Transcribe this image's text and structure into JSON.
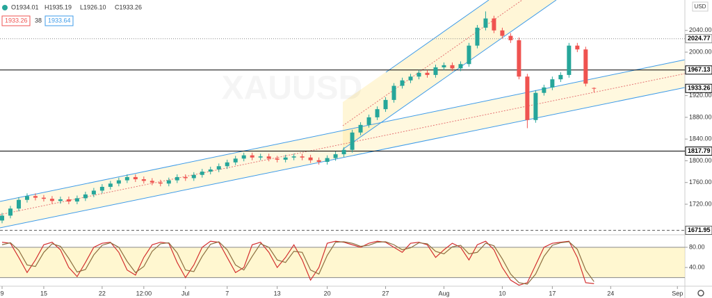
{
  "chart_data": {
    "type": "candlestick",
    "watermark": "XAUUSD",
    "currency": "USD",
    "legend_ohlc": [
      "O1934.01",
      "H1935.19",
      "L1926.10",
      "C1933.26"
    ],
    "legend_boxes": [
      "1933.26",
      "38",
      "1933.64"
    ],
    "up_color": "#26a69a",
    "down_color": "#ef5350",
    "open": [
      1690,
      1699,
      1712,
      1728,
      1735,
      1732,
      1730,
      1726,
      1729,
      1725,
      1731,
      1738,
      1745,
      1752,
      1758,
      1764,
      1770,
      1766,
      1763,
      1760,
      1758,
      1764,
      1770,
      1768,
      1774,
      1780,
      1784,
      1790,
      1797,
      1804,
      1810,
      1806,
      1808,
      1804,
      1802,
      1806,
      1808,
      1806,
      1801,
      1798,
      1805,
      1812,
      1820,
      1852,
      1866,
      1880,
      1895,
      1912,
      1938,
      1948,
      1955,
      1962,
      1958,
      1972,
      1976,
      1970,
      1978,
      2012,
      2045,
      2062,
      2040,
      2030,
      2022,
      1955,
      1875,
      1925,
      1935,
      1950,
      1958,
      2012,
      2005,
      1934.01
    ],
    "high": [
      1704,
      1717,
      1733,
      1740,
      1740,
      1737,
      1735,
      1734,
      1734,
      1736,
      1743,
      1750,
      1757,
      1763,
      1769,
      1775,
      1775,
      1771,
      1768,
      1765,
      1769,
      1775,
      1775,
      1779,
      1785,
      1789,
      1795,
      1802,
      1809,
      1815,
      1815,
      1813,
      1813,
      1809,
      1811,
      1813,
      1813,
      1811,
      1806,
      1810,
      1817,
      1825,
      1857,
      1871,
      1885,
      1900,
      1917,
      1943,
      1953,
      1960,
      1967,
      1967,
      1977,
      1981,
      1981,
      1983,
      2017,
      2050,
      2075,
      2067,
      2045,
      2035,
      2027,
      1960,
      1930,
      1940,
      1955,
      1963,
      2017,
      2017,
      2010,
      1935.19
    ],
    "low": [
      1685,
      1694,
      1707,
      1723,
      1727,
      1725,
      1721,
      1721,
      1720,
      1720,
      1726,
      1733,
      1740,
      1747,
      1753,
      1759,
      1761,
      1758,
      1755,
      1753,
      1753,
      1759,
      1763,
      1763,
      1769,
      1775,
      1779,
      1785,
      1792,
      1799,
      1801,
      1801,
      1799,
      1797,
      1797,
      1801,
      1801,
      1796,
      1793,
      1793,
      1800,
      1807,
      1815,
      1847,
      1861,
      1875,
      1890,
      1907,
      1933,
      1943,
      1950,
      1953,
      1953,
      1967,
      1965,
      1965,
      1973,
      2007,
      2040,
      2035,
      2025,
      2017,
      1950,
      1860,
      1870,
      1920,
      1930,
      1945,
      1953,
      2000,
      1937,
      1926.1
    ],
    "close": [
      1699,
      1712,
      1728,
      1735,
      1732,
      1730,
      1726,
      1729,
      1725,
      1731,
      1738,
      1745,
      1752,
      1758,
      1764,
      1770,
      1766,
      1763,
      1760,
      1758,
      1764,
      1770,
      1768,
      1774,
      1780,
      1784,
      1790,
      1797,
      1804,
      1810,
      1806,
      1808,
      1804,
      1802,
      1806,
      1808,
      1806,
      1801,
      1798,
      1805,
      1812,
      1820,
      1852,
      1866,
      1880,
      1895,
      1912,
      1938,
      1948,
      1955,
      1962,
      1958,
      1972,
      1976,
      1970,
      1978,
      2012,
      2045,
      2062,
      2040,
      2030,
      2022,
      1955,
      1875,
      1925,
      1935,
      1950,
      1958,
      2012,
      2005,
      1942,
      1933.26
    ],
    "xlim": [
      -0.25,
      81.9
    ],
    "xticks": [
      {
        "value": 0,
        "label": "9"
      },
      {
        "value": 5,
        "label": "15"
      },
      {
        "value": 12,
        "label": "22"
      },
      {
        "value": 17,
        "label": "12:00"
      },
      {
        "value": 22,
        "label": "Jul"
      },
      {
        "value": 27,
        "label": "7"
      },
      {
        "value": 33,
        "label": "13"
      },
      {
        "value": 39,
        "label": "20"
      },
      {
        "value": 46,
        "label": "27"
      },
      {
        "value": 53,
        "label": "Aug"
      },
      {
        "value": 60,
        "label": "10"
      },
      {
        "value": 66,
        "label": "17"
      },
      {
        "value": 73,
        "label": "24"
      },
      {
        "value": 81,
        "label": "Sep"
      }
    ],
    "ylim": [
      1665,
      2096
    ],
    "yticks": [
      {
        "value": 1720,
        "label": "1720.00"
      },
      {
        "value": 1760,
        "label": "1760.00"
      },
      {
        "value": 1800,
        "label": "1800.00"
      },
      {
        "value": 1840,
        "label": "1840.00"
      },
      {
        "value": 1880,
        "label": "1880.00"
      },
      {
        "value": 1920,
        "label": "1920.00"
      },
      {
        "value": 2000,
        "label": "2000.00"
      },
      {
        "value": 2040,
        "label": "2040.00"
      }
    ],
    "price_lines": [
      {
        "value": 2024.77,
        "style": "dotted",
        "color": "#888"
      },
      {
        "value": 1967.13,
        "style": "solid",
        "color": "#000"
      },
      {
        "value": 1933.26,
        "style": "none",
        "color": "#000"
      },
      {
        "value": 1817.79,
        "style": "solid",
        "color": "#000"
      },
      {
        "value": 1671.95,
        "style": "dashed",
        "color": "#555"
      }
    ],
    "oscillator": {
      "ylim": [
        3,
        102
      ],
      "yticks": [
        {
          "value": 40,
          "label": "40.00"
        },
        {
          "value": 80,
          "label": "80.00"
        }
      ],
      "band": [
        20,
        80
      ],
      "series": [
        {
          "color": "#d32f2f",
          "values": [
            90,
            88,
            60,
            30,
            55,
            85,
            90,
            75,
            40,
            22,
            50,
            80,
            88,
            90,
            70,
            35,
            25,
            60,
            85,
            90,
            88,
            50,
            20,
            45,
            80,
            92,
            90,
            60,
            30,
            40,
            85,
            90,
            70,
            40,
            60,
            85,
            55,
            15,
            40,
            88,
            92,
            90,
            85,
            80,
            88,
            92,
            90,
            80,
            70,
            88,
            90,
            85,
            60,
            75,
            88,
            80,
            55,
            85,
            92,
            75,
            40,
            15,
            5,
            10,
            45,
            80,
            88,
            90,
            92,
            60,
            10,
            8
          ]
        },
        {
          "color": "#8d6e3f",
          "values": [
            85,
            89,
            74,
            45,
            42,
            70,
            87,
            82,
            58,
            31,
            36,
            65,
            84,
            89,
            80,
            52,
            30,
            42,
            72,
            87,
            89,
            69,
            35,
            32,
            62,
            86,
            91,
            75,
            45,
            35,
            62,
            87,
            80,
            55,
            50,
            72,
            70,
            35,
            27,
            64,
            90,
            91,
            88,
            82,
            84,
            90,
            91,
            85,
            75,
            79,
            89,
            87,
            72,
            67,
            81,
            84,
            67,
            70,
            88,
            83,
            57,
            27,
            10,
            7,
            27,
            62,
            84,
            89,
            91,
            76,
            35,
            12
          ]
        }
      ]
    }
  }
}
